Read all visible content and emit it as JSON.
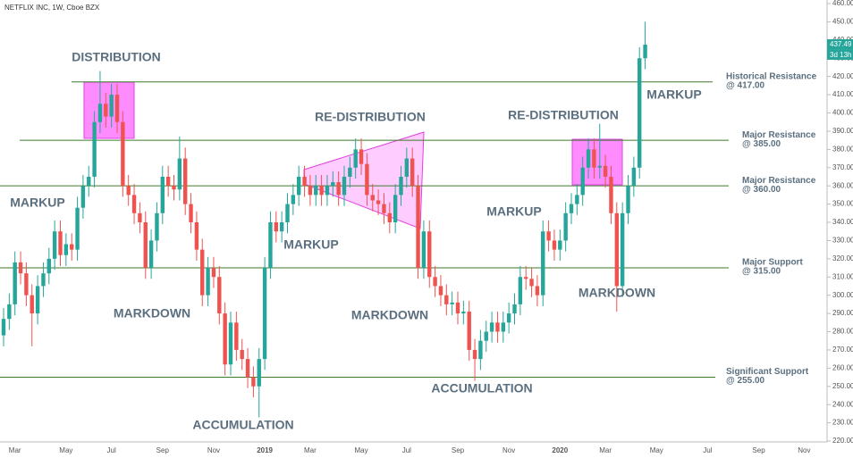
{
  "chart_data": {
    "type": "candlestick",
    "title": "NETFLIX INC, 1W, Cboe BZX",
    "up_color": "#26a69a",
    "down_color": "#ef5350",
    "countdown": "3d 13h",
    "categories": [
      null,
      null,
      "Mar",
      null,
      null,
      null,
      null,
      null,
      null,
      null,
      null,
      "May",
      null,
      null,
      null,
      null,
      null,
      null,
      null,
      "Jul",
      null,
      null,
      null,
      null,
      null,
      null,
      null,
      null,
      "Sep",
      null,
      null,
      null,
      null,
      null,
      null,
      null,
      null,
      "Nov",
      null,
      null,
      null,
      null,
      null,
      null,
      null,
      null,
      "2019",
      null,
      null,
      null,
      null,
      null,
      null,
      null,
      "Mar",
      null,
      null,
      null,
      null,
      null,
      null,
      null,
      null,
      "May",
      null,
      null,
      null,
      null,
      null,
      null,
      null,
      "Jul",
      null,
      null,
      null,
      null,
      null,
      null,
      null,
      null,
      "Sep",
      null,
      null,
      null,
      null,
      null,
      null,
      null,
      null,
      "Nov",
      null,
      null,
      null,
      null,
      null,
      null,
      null,
      null,
      "2020",
      null,
      null,
      null,
      null,
      null,
      null,
      null,
      "Mar",
      null,
      null,
      null,
      null,
      null,
      null,
      null,
      null,
      "May",
      null,
      null,
      null,
      null,
      null,
      null,
      null,
      null,
      "Jul",
      null,
      null,
      null,
      null,
      null,
      null,
      null,
      null,
      "Sep",
      null,
      null,
      null,
      null,
      null,
      null,
      null,
      "Nov"
    ],
    "open": [
      278,
      287,
      295,
      318,
      312,
      300,
      290,
      305,
      312,
      320,
      335,
      322,
      328,
      325,
      348,
      360,
      365,
      395,
      405,
      398,
      410,
      395,
      360,
      355,
      345,
      340,
      315,
      330,
      345,
      365,
      360,
      358,
      375,
      350,
      340,
      325,
      300,
      315,
      310,
      290,
      262,
      285,
      270,
      265,
      255,
      250,
      265,
      315,
      340,
      335,
      340,
      350,
      355,
      365,
      360,
      355,
      360,
      355,
      360,
      362,
      355,
      365,
      370,
      380,
      372,
      355,
      352,
      350,
      345,
      340,
      355,
      365,
      375,
      360,
      315,
      335,
      310,
      305,
      300,
      295,
      296,
      290,
      291,
      270,
      265,
      275,
      280,
      285,
      280,
      285,
      290,
      295,
      310,
      309,
      305,
      300,
      335,
      330,
      325,
      330,
      345,
      350,
      355,
      370,
      380,
      370,
      371,
      365,
      345,
      305,
      345,
      360,
      370,
      430,
      null,
      null,
      null,
      null,
      null,
      null,
      null,
      null,
      null,
      null,
      null,
      null,
      null,
      null,
      null,
      null,
      null,
      null,
      null,
      null,
      null,
      null,
      null,
      null,
      null,
      null,
      null,
      null
    ],
    "high": [
      293,
      301,
      324,
      324,
      318,
      306,
      311,
      318,
      326,
      341,
      341,
      334,
      334,
      354,
      366,
      371,
      401,
      423,
      411,
      416,
      416,
      401,
      366,
      361,
      351,
      346,
      336,
      351,
      371,
      371,
      366,
      387,
      381,
      356,
      346,
      331,
      321,
      321,
      316,
      296,
      291,
      291,
      276,
      271,
      261,
      271,
      321,
      346,
      346,
      346,
      356,
      361,
      371,
      371,
      366,
      366,
      366,
      366,
      368,
      368,
      371,
      376,
      386,
      386,
      378,
      361,
      358,
      356,
      351,
      361,
      371,
      381,
      381,
      366,
      341,
      341,
      316,
      311,
      306,
      302,
      302,
      297,
      297,
      276,
      281,
      286,
      291,
      291,
      291,
      296,
      301,
      316,
      316,
      315,
      311,
      341,
      341,
      336,
      336,
      351,
      356,
      361,
      376,
      386,
      386,
      394,
      377,
      371,
      351,
      351,
      366,
      376,
      436,
      450,
      null,
      null,
      null,
      null,
      null,
      null,
      null,
      null,
      null,
      null,
      null,
      null,
      null,
      null,
      null,
      null,
      null,
      null,
      null,
      null,
      null,
      null,
      null,
      null,
      null,
      null,
      null,
      null
    ],
    "low": [
      272,
      281,
      289,
      306,
      294,
      272,
      284,
      299,
      306,
      314,
      316,
      316,
      319,
      319,
      342,
      354,
      359,
      389,
      392,
      392,
      389,
      354,
      349,
      339,
      334,
      309,
      309,
      324,
      339,
      354,
      352,
      352,
      344,
      334,
      319,
      294,
      294,
      304,
      284,
      256,
      256,
      264,
      259,
      249,
      244,
      233,
      259,
      309,
      329,
      329,
      334,
      344,
      349,
      354,
      349,
      349,
      349,
      349,
      354,
      349,
      349,
      359,
      364,
      366,
      349,
      346,
      344,
      339,
      334,
      334,
      349,
      359,
      354,
      309,
      309,
      304,
      299,
      294,
      289,
      289,
      284,
      284,
      264,
      253,
      259,
      269,
      274,
      274,
      274,
      279,
      284,
      289,
      303,
      299,
      294,
      294,
      324,
      319,
      319,
      324,
      339,
      344,
      349,
      364,
      364,
      364,
      359,
      339,
      291,
      299,
      339,
      354,
      364,
      424,
      null,
      null,
      null,
      null,
      null,
      null,
      null,
      null,
      null,
      null,
      null,
      null,
      null,
      null,
      null,
      null,
      null,
      null,
      null,
      null,
      null,
      null,
      null,
      null,
      null,
      null,
      null,
      null
    ],
    "close": [
      287,
      295,
      318,
      312,
      300,
      290,
      305,
      312,
      320,
      335,
      322,
      328,
      325,
      348,
      360,
      365,
      395,
      405,
      398,
      410,
      395,
      360,
      355,
      345,
      340,
      315,
      330,
      345,
      365,
      360,
      358,
      375,
      350,
      340,
      325,
      300,
      315,
      310,
      290,
      262,
      285,
      270,
      265,
      255,
      250,
      265,
      315,
      340,
      335,
      340,
      350,
      355,
      365,
      360,
      355,
      360,
      355,
      360,
      362,
      355,
      365,
      370,
      380,
      372,
      355,
      352,
      350,
      345,
      340,
      355,
      365,
      375,
      360,
      315,
      335,
      310,
      305,
      300,
      295,
      296,
      290,
      291,
      270,
      265,
      275,
      280,
      285,
      280,
      285,
      290,
      295,
      310,
      309,
      305,
      300,
      335,
      330,
      325,
      330,
      345,
      350,
      355,
      370,
      380,
      370,
      371,
      365,
      345,
      305,
      345,
      360,
      370,
      430,
      437.49,
      null,
      null,
      null,
      null,
      null,
      null,
      null,
      null,
      null,
      null,
      null,
      null,
      null,
      null,
      null,
      null,
      null,
      null,
      null,
      null,
      null,
      null,
      null,
      null,
      null,
      null,
      null,
      null
    ],
    "ylim": [
      220,
      460
    ],
    "yticks": [
      {
        "value": 220,
        "label": "220.00"
      },
      {
        "value": 230,
        "label": "230.00"
      },
      {
        "value": 240,
        "label": "240.00"
      },
      {
        "value": 250,
        "label": "250.00"
      },
      {
        "value": 260,
        "label": "260.00"
      },
      {
        "value": 270,
        "label": "270.00"
      },
      {
        "value": 280,
        "label": "280.00"
      },
      {
        "value": 290,
        "label": "290.00"
      },
      {
        "value": 300,
        "label": "300.00"
      },
      {
        "value": 310,
        "label": "310.00"
      },
      {
        "value": 320,
        "label": "320.00"
      },
      {
        "value": 330,
        "label": "330.00"
      },
      {
        "value": 340,
        "label": "340.00"
      },
      {
        "value": 350,
        "label": "350.00"
      },
      {
        "value": 360,
        "label": "360.00"
      },
      {
        "value": 370,
        "label": "370.00"
      },
      {
        "value": 380,
        "label": "380.00"
      },
      {
        "value": 390,
        "label": "390.00"
      },
      {
        "value": 400,
        "label": "400.00"
      },
      {
        "value": 410,
        "label": "410.00"
      },
      {
        "value": 420,
        "label": "420.00"
      },
      {
        "value": 430,
        "label": "430.00"
      },
      {
        "value": 440,
        "label": "440.00"
      },
      {
        "value": 450,
        "label": "450.00"
      },
      {
        "value": 460,
        "label": "460.00"
      }
    ],
    "levels": [
      {
        "value": 417,
        "label": "Historical Resistance",
        "sublabel": "@ 417.00"
      },
      {
        "value": 385,
        "label": "Major Resistance",
        "sublabel": "@ 385.00"
      },
      {
        "value": 360,
        "label": "Major Resistance",
        "sublabel": "@ 360.00"
      },
      {
        "value": 315,
        "label": "Major Support",
        "sublabel": "@ 315.00"
      },
      {
        "value": 255,
        "label": "Significant Support",
        "sublabel": "@ 255.00"
      }
    ],
    "annotations": [
      "DISTRIBUTION",
      "MARKUP",
      "MARKDOWN",
      "ACCUMULATION",
      "MARKUP",
      "RE-DISTRIBUTION",
      "MARKDOWN",
      "ACCUMULATION",
      "MARKUP",
      "RE-DISTRIBUTION",
      "MARKDOWN",
      "MARKUP"
    ]
  }
}
